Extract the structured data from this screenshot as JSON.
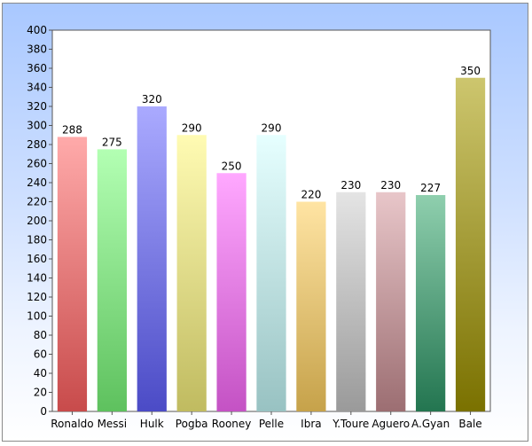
{
  "chart_data": {
    "type": "bar",
    "title": "",
    "xlabel": "",
    "ylabel": "",
    "categories": [
      "Ronaldo",
      "Messi",
      "Hulk",
      "Pogba",
      "Rooney",
      "Pelle",
      "Ibra",
      "Y.Toure",
      "Aguero",
      "A.Gyan",
      "Bale"
    ],
    "values": [
      288,
      275,
      320,
      290,
      250,
      290,
      220,
      230,
      230,
      227,
      350
    ],
    "ylim": [
      0,
      400
    ],
    "ytick_step": 20,
    "grid": false,
    "legend": "none",
    "bar_colors": [
      [
        "#ffaaaa",
        "#c84b4b"
      ],
      [
        "#b3ffb3",
        "#5ec15e"
      ],
      [
        "#aaaaff",
        "#4b4bc6"
      ],
      [
        "#fffbb3",
        "#c0bb60"
      ],
      [
        "#ffa8ff",
        "#c452c4"
      ],
      [
        "#e6ffff",
        "#98c2c2"
      ],
      [
        "#ffe4a3",
        "#c6a24a"
      ],
      [
        "#e4e4e4",
        "#9a9a9a"
      ],
      [
        "#e8c6c9",
        "#9c6e72"
      ],
      [
        "#8fcfae",
        "#237550"
      ],
      [
        "#cdc66e",
        "#7a7100"
      ]
    ]
  }
}
